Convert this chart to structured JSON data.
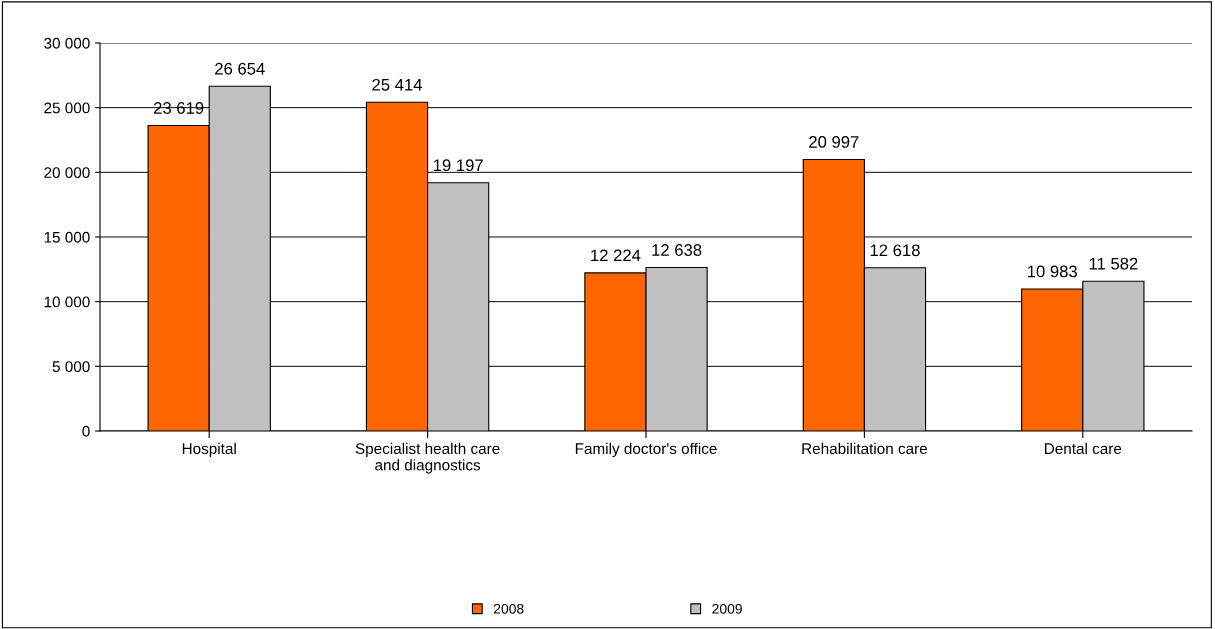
{
  "chart_data": {
    "type": "bar",
    "categories": [
      "Hospital",
      "Specialist health care\nand diagnostics",
      "Family doctor's office",
      "Rehabilitation care",
      "Dental care"
    ],
    "series": [
      {
        "name": "2008",
        "color": "#ff6600",
        "values": [
          23619,
          25414,
          12224,
          20997,
          10983
        ],
        "value_labels": [
          "23 619",
          "25 414",
          "12 224",
          "20 997",
          "10 983"
        ]
      },
      {
        "name": "2009",
        "color": "#c0c0c0",
        "values": [
          26654,
          19197,
          12638,
          12618,
          11582
        ],
        "value_labels": [
          "26 654",
          "19 197",
          "12 638",
          "12 618",
          "11 582"
        ]
      }
    ],
    "ylim": [
      0,
      30000
    ],
    "yticks": [
      {
        "value": 0,
        "label": "0"
      },
      {
        "value": 5000,
        "label": "5 000"
      },
      {
        "value": 10000,
        "label": "10 000"
      },
      {
        "value": 15000,
        "label": "15 000"
      },
      {
        "value": 20000,
        "label": "20 000"
      },
      {
        "value": 25000,
        "label": "25 000"
      },
      {
        "value": 30000,
        "label": "30 000"
      }
    ],
    "grid": "y",
    "legend": "bottom"
  }
}
